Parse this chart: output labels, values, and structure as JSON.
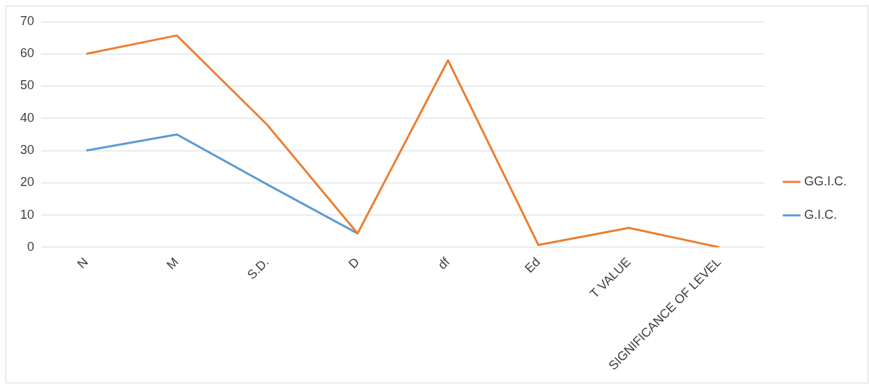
{
  "chart_data": {
    "type": "line",
    "categories": [
      "N",
      "M",
      "S.D.",
      "D",
      "df",
      "Ed",
      "T VALUE",
      "SIGNIFICANCE OF LEVEL"
    ],
    "series": [
      {
        "name": "GG.I.C.",
        "color": "#ed7d31",
        "values": [
          60,
          65.7,
          38,
          4.3,
          58,
          0.7,
          6,
          0
        ]
      },
      {
        "name": "G.I.C.",
        "color": "#5b9bd5",
        "values": [
          30,
          35,
          19.5,
          4.3,
          null,
          null,
          null,
          null
        ]
      }
    ],
    "ylim": [
      0,
      70
    ],
    "yticks": [
      0,
      10,
      20,
      30,
      40,
      50,
      60,
      70
    ],
    "grid": "y",
    "legend": "right",
    "marker": "none",
    "line_style": "solid"
  }
}
